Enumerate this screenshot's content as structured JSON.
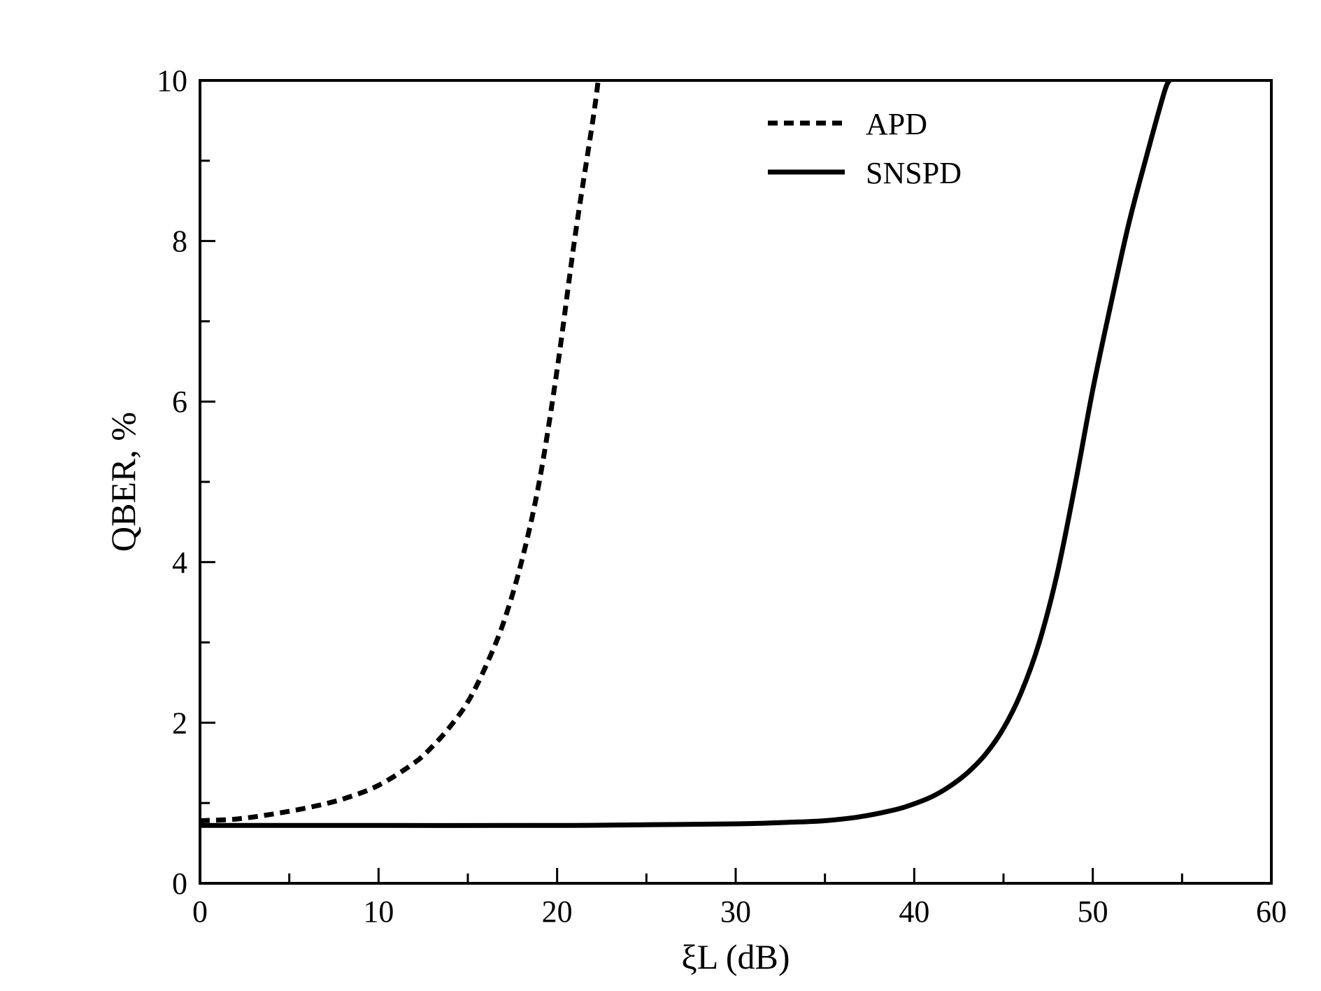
{
  "chart_data": {
    "type": "line",
    "title": "",
    "xlabel": "ξL (dB)",
    "ylabel": "QBER, %",
    "xlim": [
      0,
      60
    ],
    "ylim": [
      0,
      10
    ],
    "x_ticks": [
      0,
      10,
      20,
      30,
      40,
      50,
      60
    ],
    "x_tick_labels": [
      "0",
      "10",
      "20",
      "30",
      "40",
      "50",
      "60"
    ],
    "y_ticks": [
      0,
      2,
      4,
      6,
      8,
      10
    ],
    "y_tick_labels": [
      "0",
      "2",
      "4",
      "6",
      "8",
      "10"
    ],
    "x_minor_ticks": [
      5,
      15,
      25,
      35,
      45,
      55
    ],
    "y_minor_ticks": [
      1,
      3,
      5,
      7,
      9
    ],
    "grid": false,
    "legend_position": "top-right",
    "series": [
      {
        "name": "APD",
        "style": "dashed",
        "color": "#000000",
        "x": [
          0,
          2,
          4,
          6,
          8,
          10,
          12,
          13,
          14,
          15,
          16,
          17,
          18,
          19,
          20,
          21,
          22,
          22.3
        ],
        "y": [
          0.78,
          0.8,
          0.86,
          0.94,
          1.05,
          1.22,
          1.5,
          1.7,
          1.95,
          2.26,
          2.7,
          3.25,
          4.0,
          5.0,
          6.4,
          8.05,
          9.5,
          10.0
        ]
      },
      {
        "name": "SNSPD",
        "style": "solid",
        "color": "#000000",
        "x": [
          0,
          10,
          20,
          25,
          30,
          33,
          35,
          37,
          39,
          40,
          41,
          42,
          43,
          44,
          45,
          46,
          47,
          48,
          49,
          50,
          51,
          52,
          53,
          54,
          54.3
        ],
        "y": [
          0.72,
          0.72,
          0.72,
          0.73,
          0.74,
          0.76,
          0.78,
          0.83,
          0.92,
          0.99,
          1.08,
          1.21,
          1.38,
          1.61,
          1.93,
          2.38,
          3.0,
          3.85,
          4.95,
          6.15,
          7.2,
          8.2,
          9.05,
          9.85,
          10.0
        ]
      }
    ]
  }
}
